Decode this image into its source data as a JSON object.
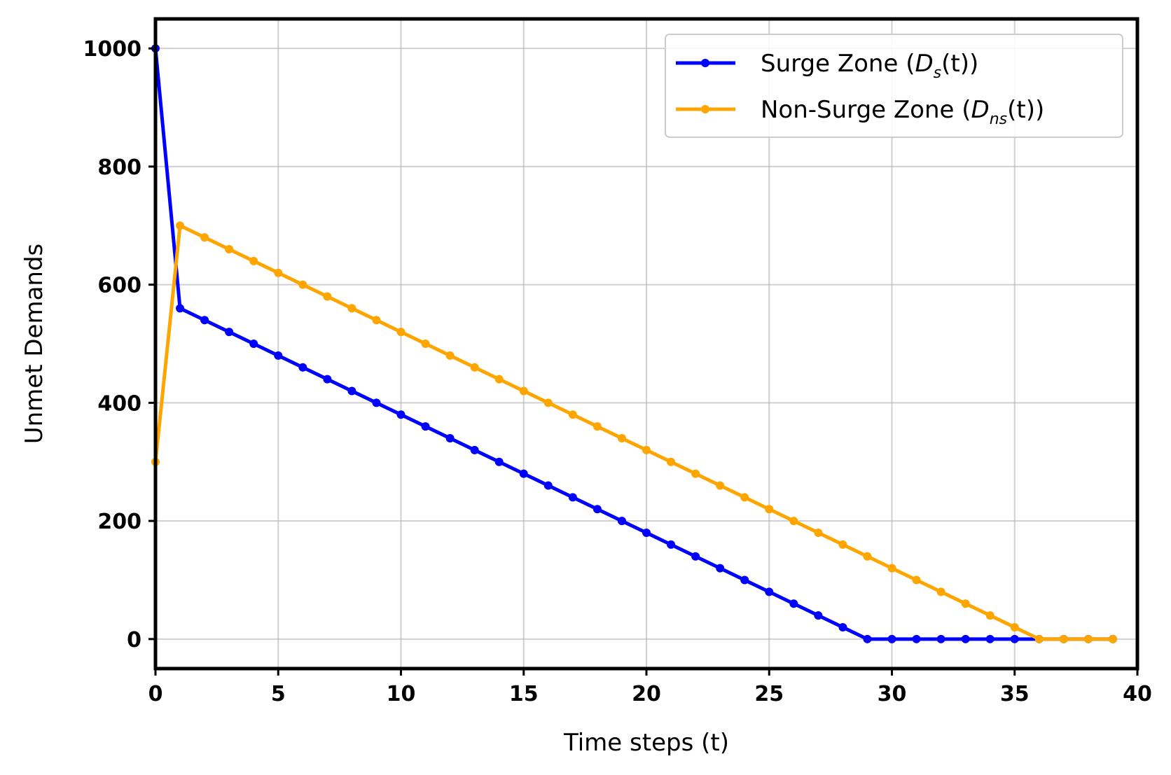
{
  "chart_data": {
    "type": "line",
    "xlabel": "Time steps (t)",
    "ylabel": "Unmet Demands",
    "xlim": [
      0,
      40
    ],
    "ylim": [
      -50,
      1050
    ],
    "xticks": [
      0,
      5,
      10,
      15,
      20,
      25,
      30,
      35,
      40
    ],
    "yticks": [
      0,
      200,
      400,
      600,
      800,
      1000
    ],
    "grid": true,
    "legend_position": "top-right",
    "x": [
      0,
      1,
      2,
      3,
      4,
      5,
      6,
      7,
      8,
      9,
      10,
      11,
      12,
      13,
      14,
      15,
      16,
      17,
      18,
      19,
      20,
      21,
      22,
      23,
      24,
      25,
      26,
      27,
      28,
      29,
      30,
      31,
      32,
      33,
      34,
      35,
      36,
      37,
      38,
      39
    ],
    "series": [
      {
        "legend": {
          "prefix": "Surge Zone (",
          "var": "D",
          "sub": "s",
          "suffix": "(t))"
        },
        "color": "#0000ff",
        "values": [
          1000,
          560,
          540,
          520,
          500,
          480,
          460,
          440,
          420,
          400,
          380,
          360,
          340,
          320,
          300,
          280,
          260,
          240,
          220,
          200,
          180,
          160,
          140,
          120,
          100,
          80,
          60,
          40,
          20,
          0,
          0,
          0,
          0,
          0,
          0,
          0,
          0,
          0,
          0,
          0
        ]
      },
      {
        "legend": {
          "prefix": "Non-Surge Zone (",
          "var": "D",
          "sub": "ns",
          "suffix": "(t))"
        },
        "color": "#ffa500",
        "values": [
          300,
          700,
          680,
          660,
          640,
          620,
          600,
          580,
          560,
          540,
          520,
          500,
          480,
          460,
          440,
          420,
          400,
          380,
          360,
          340,
          320,
          300,
          280,
          260,
          240,
          220,
          200,
          180,
          160,
          140,
          120,
          100,
          80,
          60,
          40,
          20,
          0,
          0,
          0,
          0
        ]
      }
    ]
  }
}
